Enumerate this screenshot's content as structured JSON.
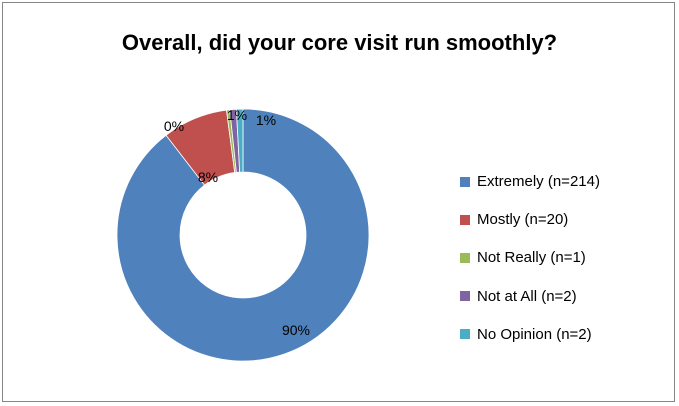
{
  "chart_data": {
    "type": "pie",
    "title": "Overall, did your core visit run smoothly?",
    "donut": true,
    "series": [
      {
        "name": "Extremely (n=214)",
        "count": 214,
        "label": "90%",
        "color": "#4F81BD"
      },
      {
        "name": "Mostly (n=20)",
        "count": 20,
        "label": "8%",
        "color": "#C0504D"
      },
      {
        "name": "Not Really (n=1)",
        "count": 1,
        "label": "0%",
        "color": "#9BBB59"
      },
      {
        "name": "Not at All (n=2)",
        "count": 2,
        "label": "1%",
        "color": "#8064A2"
      },
      {
        "name": "No Opinion (n=2)",
        "count": 2,
        "label": "1%",
        "color": "#4BACC6"
      }
    ],
    "legend_position": "right"
  }
}
